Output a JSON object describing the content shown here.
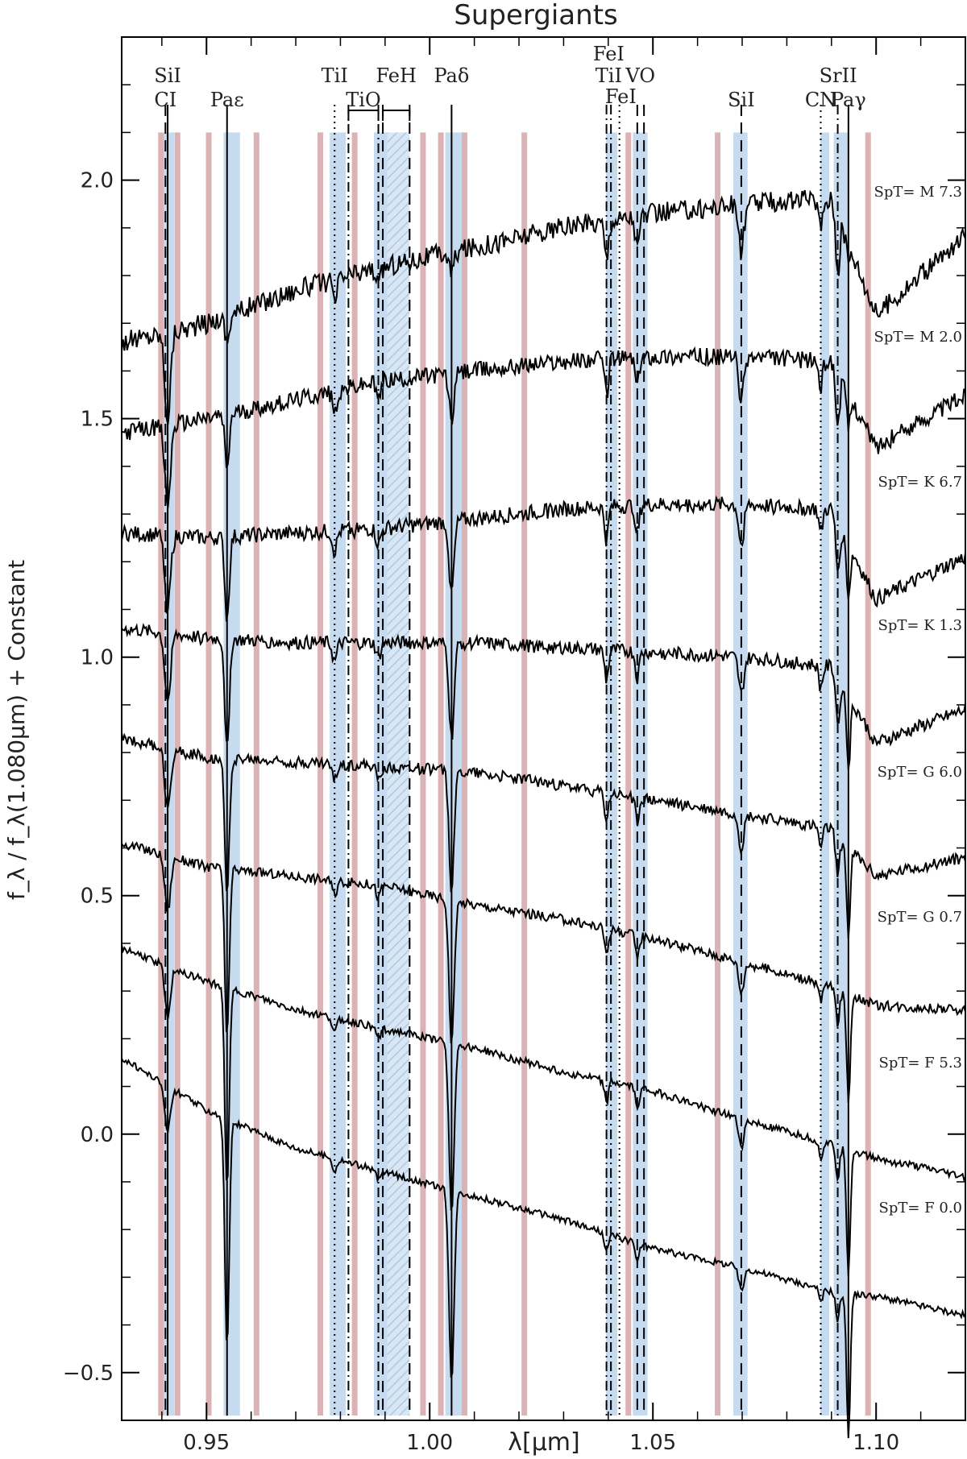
{
  "chart_data": {
    "type": "line",
    "title": "Supergiants",
    "xlabel": "λ[μm]",
    "ylabel": "f_λ / f_λ(1.080μm) + Constant",
    "xlim": [
      0.931,
      1.12
    ],
    "ylim": [
      -0.6,
      2.3
    ],
    "xticks": [
      {
        "v": 0.95,
        "label": "0.95"
      },
      {
        "v": 1.0,
        "label": "1.00"
      },
      {
        "v": 1.05,
        "label": "1.05"
      },
      {
        "v": 1.1,
        "label": "1.10"
      }
    ],
    "yticks": [
      {
        "v": 2.0,
        "label": "2.0"
      },
      {
        "v": 1.5,
        "label": "1.5"
      },
      {
        "v": 1.0,
        "label": "1.0"
      },
      {
        "v": 0.5,
        "label": "0.5"
      },
      {
        "v": 0.0,
        "label": "0.0"
      },
      {
        "v": -0.5,
        "label": "−0.5"
      }
    ],
    "grid": false,
    "band_range": [
      -0.59,
      2.1
    ],
    "blue_bands": [
      [
        0.9404,
        0.9428
      ],
      [
        0.9538,
        0.9575
      ],
      [
        0.9776,
        0.9812
      ],
      [
        0.9875,
        0.9905
      ],
      [
        1.0035,
        1.0075
      ],
      [
        1.0395,
        1.042
      ],
      [
        1.0455,
        1.0488
      ],
      [
        1.068,
        1.0712
      ],
      [
        1.0875,
        1.0895
      ],
      [
        1.0905,
        1.0938
      ]
    ],
    "hatched_bands": [
      [
        0.9905,
        0.9955
      ]
    ],
    "red_bands": [
      0.9398,
      0.9435,
      0.9505,
      0.9612,
      0.9755,
      0.9832,
      0.9985,
      1.0025,
      1.0078,
      1.0212,
      1.0445,
      1.0645,
      1.0982
    ],
    "line_markers": [
      {
        "name": "CI",
        "x": 0.9408,
        "style": "dash",
        "label": "CI",
        "label_row": 2
      },
      {
        "name": "SiI",
        "x": 0.9413,
        "style": "solid",
        "label": "SiI",
        "label_row": 1
      },
      {
        "name": "Pa-epsilon",
        "x": 0.9546,
        "style": "solid",
        "label": "Paε",
        "label_row": 2
      },
      {
        "name": "TiI-1",
        "x": 0.9787,
        "style": "dot",
        "label": "TiI",
        "label_row": 1
      },
      {
        "name": "TiO-a",
        "x": 0.9818,
        "style": "dashdot",
        "label": "",
        "label_row": 0
      },
      {
        "name": "TiO-b",
        "x": 0.9885,
        "style": "dashdot",
        "label": "",
        "label_row": 0
      },
      {
        "name": "FeH-a",
        "x": 0.9895,
        "style": "dash",
        "label": "",
        "label_row": 0
      },
      {
        "name": "FeH-b",
        "x": 0.9955,
        "style": "dash",
        "label": "",
        "label_row": 0
      },
      {
        "name": "Pa-delta",
        "x": 1.0049,
        "style": "solid",
        "label": "Paδ",
        "label_row": 1
      },
      {
        "name": "FeI-1",
        "x": 1.0396,
        "style": "dashdot",
        "label": "",
        "label_row": 0
      },
      {
        "name": "TiI-2",
        "x": 1.0406,
        "style": "dashdot",
        "label": "",
        "label_row": 0
      },
      {
        "name": "FeI-2",
        "x": 1.0425,
        "style": "dot",
        "label": "",
        "label_row": 0
      },
      {
        "name": "VO-a",
        "x": 1.0465,
        "style": "dash",
        "label": "",
        "label_row": 0
      },
      {
        "name": "VO-b",
        "x": 1.048,
        "style": "dash",
        "label": "",
        "label_row": 0
      },
      {
        "name": "SiI-2",
        "x": 1.0698,
        "style": "dash",
        "label": "SiI",
        "label_row": 2
      },
      {
        "name": "CN",
        "x": 1.0876,
        "style": "dot",
        "label": "CN",
        "label_row": 2
      },
      {
        "name": "SrII",
        "x": 1.0914,
        "style": "dashdot",
        "label": "",
        "label_row": 0
      },
      {
        "name": "Pa-gamma",
        "x": 1.0938,
        "style": "solid",
        "label": "Paγ",
        "label_row": 2
      }
    ],
    "bracket_labels": [
      {
        "name": "TiO",
        "x1": 0.9818,
        "x2": 0.9885,
        "label": "TiO"
      },
      {
        "name": "FeH",
        "x1": 0.9895,
        "x2": 0.9955,
        "label": "FeH"
      }
    ],
    "stacked_labels": [
      {
        "name": "FeI-TiI",
        "lines": [
          "FeI",
          "TiI"
        ],
        "x": 1.0401
      },
      {
        "name": "VO",
        "lines": [
          "VO"
        ],
        "x": 1.0472
      },
      {
        "name": "FeI-small",
        "lines": [
          "FeI"
        ],
        "x": 1.0428
      },
      {
        "name": "SrII",
        "lines": [
          "SrII"
        ],
        "x": 1.0915
      }
    ],
    "series": [
      {
        "name": "SpT= M 7.3",
        "offset": 1.86,
        "slope": 0.6,
        "noise": 0.022,
        "curv": -1.5,
        "values": [
          [
            0.931,
            1.66
          ],
          [
            0.95,
            1.7
          ],
          [
            0.97,
            1.77
          ],
          [
            0.99,
            1.82
          ],
          [
            1.01,
            1.86
          ],
          [
            1.03,
            1.9
          ],
          [
            1.05,
            1.93
          ],
          [
            1.07,
            1.95
          ],
          [
            1.09,
            1.96
          ],
          [
            1.1,
            1.72
          ],
          [
            1.12,
            1.88
          ]
        ]
      },
      {
        "name": "SpT= M 2.0",
        "offset": 1.55,
        "slope": 0.3,
        "noise": 0.018,
        "curv": -0.8,
        "values": [
          [
            0.931,
            1.47
          ],
          [
            0.95,
            1.5
          ],
          [
            0.97,
            1.54
          ],
          [
            0.99,
            1.58
          ],
          [
            1.01,
            1.6
          ],
          [
            1.03,
            1.62
          ],
          [
            1.05,
            1.63
          ],
          [
            1.07,
            1.63
          ],
          [
            1.09,
            1.62
          ],
          [
            1.1,
            1.44
          ],
          [
            1.12,
            1.55
          ]
        ]
      },
      {
        "name": "SpT= K 6.7",
        "offset": 1.29,
        "slope": 0.0,
        "noise": 0.016,
        "curv": -0.3,
        "values": [
          [
            0.931,
            1.26
          ],
          [
            0.95,
            1.25
          ],
          [
            0.97,
            1.26
          ],
          [
            0.99,
            1.27
          ],
          [
            1.01,
            1.29
          ],
          [
            1.03,
            1.31
          ],
          [
            1.05,
            1.32
          ],
          [
            1.07,
            1.32
          ],
          [
            1.09,
            1.31
          ],
          [
            1.1,
            1.12
          ],
          [
            1.12,
            1.21
          ]
        ]
      },
      {
        "name": "SpT= K 1.3",
        "offset": 1.02,
        "slope": -0.1,
        "noise": 0.014,
        "curv": 0.0,
        "values": [
          [
            0.931,
            1.06
          ],
          [
            0.95,
            1.04
          ],
          [
            0.97,
            1.03
          ],
          [
            0.99,
            1.03
          ],
          [
            1.01,
            1.03
          ],
          [
            1.03,
            1.02
          ],
          [
            1.05,
            1.01
          ],
          [
            1.07,
            1.0
          ],
          [
            1.09,
            0.98
          ],
          [
            1.1,
            0.82
          ],
          [
            1.12,
            0.89
          ]
        ]
      },
      {
        "name": "SpT= G 6.0",
        "offset": 0.76,
        "slope": -0.55,
        "noise": 0.012,
        "curv": 0.4,
        "values": [
          [
            0.931,
            0.83
          ],
          [
            0.95,
            0.79
          ],
          [
            0.97,
            0.78
          ],
          [
            0.99,
            0.77
          ],
          [
            1.01,
            0.76
          ],
          [
            1.03,
            0.73
          ],
          [
            1.05,
            0.7
          ],
          [
            1.07,
            0.67
          ],
          [
            1.09,
            0.64
          ],
          [
            1.1,
            0.54
          ],
          [
            1.12,
            0.58
          ]
        ]
      },
      {
        "name": "SpT= G 0.7",
        "offset": 0.51,
        "slope": -1.2,
        "noise": 0.01,
        "curv": 0.5,
        "values": [
          [
            0.931,
            0.61
          ],
          [
            0.95,
            0.56
          ],
          [
            0.97,
            0.54
          ],
          [
            0.99,
            0.52
          ],
          [
            1.01,
            0.48
          ],
          [
            1.03,
            0.45
          ],
          [
            1.05,
            0.41
          ],
          [
            1.07,
            0.36
          ],
          [
            1.09,
            0.31
          ],
          [
            1.1,
            0.27
          ],
          [
            1.12,
            0.26
          ]
        ]
      },
      {
        "name": "SpT= F 5.3",
        "offset": 0.2,
        "slope": -1.5,
        "noise": 0.008,
        "curv": 0.5,
        "values": [
          [
            0.931,
            0.39
          ],
          [
            0.95,
            0.32
          ],
          [
            0.97,
            0.26
          ],
          [
            0.99,
            0.22
          ],
          [
            1.01,
            0.18
          ],
          [
            1.03,
            0.13
          ],
          [
            1.05,
            0.09
          ],
          [
            1.07,
            0.03
          ],
          [
            1.09,
            -0.02
          ],
          [
            1.1,
            -0.05
          ],
          [
            1.12,
            -0.09
          ]
        ]
      },
      {
        "name": "SpT= F 0.0",
        "offset": -0.06,
        "slope": -2.0,
        "noise": 0.007,
        "curv": 0.5,
        "values": [
          [
            0.931,
            0.16
          ],
          [
            0.95,
            0.05
          ],
          [
            0.97,
            -0.03
          ],
          [
            0.99,
            -0.08
          ],
          [
            1.01,
            -0.13
          ],
          [
            1.03,
            -0.18
          ],
          [
            1.05,
            -0.24
          ],
          [
            1.07,
            -0.28
          ],
          [
            1.09,
            -0.33
          ],
          [
            1.1,
            -0.34
          ],
          [
            1.12,
            -0.38
          ]
        ]
      }
    ],
    "absorption_lines": [
      {
        "x": 0.9413,
        "depth": 0.18,
        "width": 0.0009
      },
      {
        "x": 0.9546,
        "depth": 0.35,
        "width": 0.0007,
        "balmer": true
      },
      {
        "x": 0.9787,
        "depth": 0.05,
        "width": 0.0007
      },
      {
        "x": 0.9885,
        "depth": 0.04,
        "width": 0.0007
      },
      {
        "x": 1.0049,
        "depth": 0.3,
        "width": 0.0008,
        "balmer": true
      },
      {
        "x": 1.0396,
        "depth": 0.08,
        "width": 0.0006
      },
      {
        "x": 1.0465,
        "depth": 0.07,
        "width": 0.0006
      },
      {
        "x": 1.0698,
        "depth": 0.1,
        "width": 0.0008
      },
      {
        "x": 1.0876,
        "depth": 0.06,
        "width": 0.0006
      },
      {
        "x": 1.0914,
        "depth": 0.12,
        "width": 0.0006
      },
      {
        "x": 1.0938,
        "depth": 0.22,
        "width": 0.0006,
        "balmer": true
      }
    ]
  }
}
